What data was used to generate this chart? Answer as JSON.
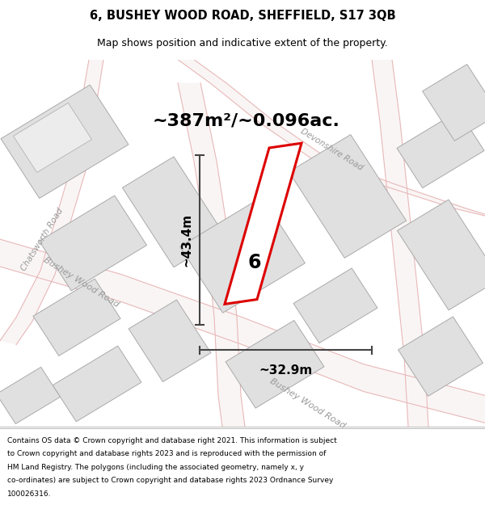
{
  "title_line1": "6, BUSHEY WOOD ROAD, SHEFFIELD, S17 3QB",
  "title_line2": "Map shows position and indicative extent of the property.",
  "area_text": "~387m²/~0.096ac.",
  "dim_height": "~43.4m",
  "dim_width": "~32.9m",
  "number_label": "6",
  "footer_text_lines": [
    "Contains OS data © Crown copyright and database right 2021. This information is subject",
    "to Crown copyright and database rights 2023 and is reproduced with the permission of",
    "HM Land Registry. The polygons (including the associated geometry, namely x, y",
    "co-ordinates) are subject to Crown copyright and database rights 2023 Ordnance Survey",
    "100026316."
  ],
  "bg_color": "#ffffff",
  "map_bg": "#f2f1f0",
  "road_outline_color": "#e8b8b8",
  "road_fill_color": "#faf5f5",
  "building_fill": "#e0e0e0",
  "building_stroke": "#aaaaaa",
  "property_stroke": "#dd0000",
  "property_fill": "#ffffff",
  "dim_color": "#444444",
  "title_color": "#000000",
  "footer_color": "#000000",
  "road_label_color": "#aaaaaa",
  "map_road_label_color": "#999999",
  "area_fontsize": 16,
  "dim_fontsize": 11,
  "number_fontsize": 18
}
